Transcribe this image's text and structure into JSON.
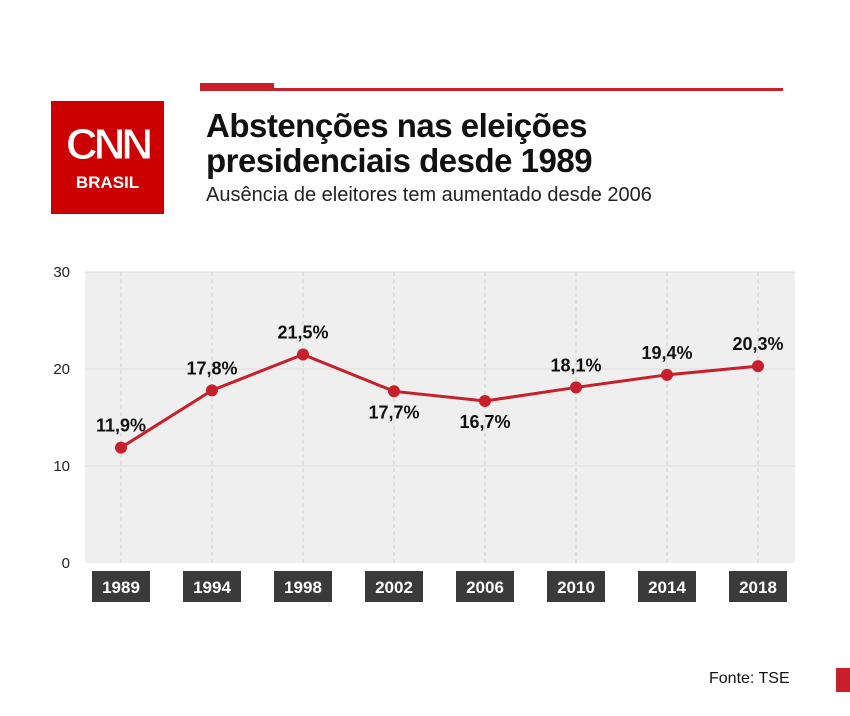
{
  "brand": {
    "logo_text": "CNN",
    "logo_subtext": "BRASIL",
    "accent": "#c8202a"
  },
  "header": {
    "title_line1": "Abstenções nas eleições",
    "title_line2": "presidenciais desde 1989",
    "subtitle": "Ausência de eleitores tem aumentado desde 2006"
  },
  "footer": {
    "source": "Fonte: TSE"
  },
  "chart_data": {
    "type": "line",
    "title": "Abstenções nas eleições presidenciais desde 1989",
    "subtitle": "Ausência de eleitores tem aumentado desde 2006",
    "categories": [
      "1989",
      "1994",
      "1998",
      "2002",
      "2006",
      "2010",
      "2014",
      "2018"
    ],
    "values": [
      11.9,
      17.8,
      21.5,
      17.7,
      16.7,
      18.1,
      19.4,
      20.3
    ],
    "data_labels": [
      "11,9%",
      "17,8%",
      "21,5%",
      "17,7%",
      "16,7%",
      "18,1%",
      "19,4%",
      "20,3%"
    ],
    "ylim": [
      0,
      30
    ],
    "yticks": [
      "0",
      "10",
      "20",
      "30"
    ],
    "grid": true,
    "line_color": "#c8202a",
    "plot_background": "#efefef"
  }
}
